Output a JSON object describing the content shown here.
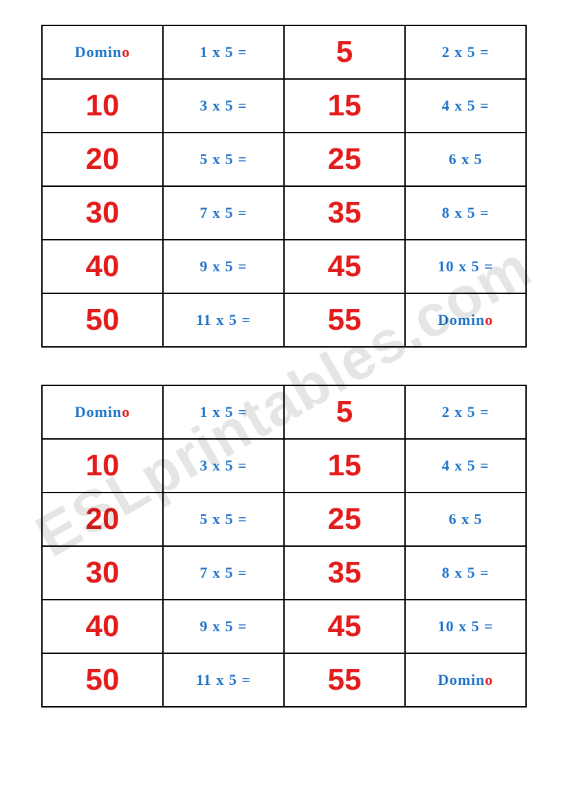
{
  "watermark": "ESLprintables.com",
  "colors": {
    "blue": "#1e73c8",
    "red": "#e31b1b",
    "border": "#000000",
    "background": "#ffffff",
    "watermark": "rgba(0,0,0,0.10)"
  },
  "typography": {
    "equation_fontsize": 22,
    "answer_fontsize": 44,
    "label_fontsize": 22
  },
  "tables": [
    {
      "rows": [
        [
          {
            "type": "label",
            "text": "Domino"
          },
          {
            "type": "eq",
            "text": "1 x 5 ="
          },
          {
            "type": "ans",
            "text": "5"
          },
          {
            "type": "eq",
            "text": "2 x 5 ="
          }
        ],
        [
          {
            "type": "ans",
            "text": "10"
          },
          {
            "type": "eq",
            "text": "3 x 5 ="
          },
          {
            "type": "ans",
            "text": "15"
          },
          {
            "type": "eq",
            "text": "4 x 5 ="
          }
        ],
        [
          {
            "type": "ans",
            "text": "20"
          },
          {
            "type": "eq",
            "text": "5 x 5 ="
          },
          {
            "type": "ans",
            "text": "25"
          },
          {
            "type": "eq",
            "text": "6 x 5"
          }
        ],
        [
          {
            "type": "ans",
            "text": "30"
          },
          {
            "type": "eq",
            "text": "7 x 5 ="
          },
          {
            "type": "ans",
            "text": "35"
          },
          {
            "type": "eq",
            "text": "8 x 5 ="
          }
        ],
        [
          {
            "type": "ans",
            "text": "40"
          },
          {
            "type": "eq",
            "text": "9 x 5 ="
          },
          {
            "type": "ans",
            "text": "45"
          },
          {
            "type": "eq",
            "text": "10 x 5 ="
          }
        ],
        [
          {
            "type": "ans",
            "text": "50"
          },
          {
            "type": "eq",
            "text": "11 x 5 ="
          },
          {
            "type": "ans",
            "text": "55"
          },
          {
            "type": "label",
            "text": "Domino"
          }
        ]
      ]
    },
    {
      "rows": [
        [
          {
            "type": "label",
            "text": "Domino"
          },
          {
            "type": "eq",
            "text": "1 x 5 ="
          },
          {
            "type": "ans",
            "text": "5"
          },
          {
            "type": "eq",
            "text": "2 x 5 ="
          }
        ],
        [
          {
            "type": "ans",
            "text": "10"
          },
          {
            "type": "eq",
            "text": "3 x 5 ="
          },
          {
            "type": "ans",
            "text": "15"
          },
          {
            "type": "eq",
            "text": "4 x 5 ="
          }
        ],
        [
          {
            "type": "ans",
            "text": "20"
          },
          {
            "type": "eq",
            "text": "5 x 5 ="
          },
          {
            "type": "ans",
            "text": "25"
          },
          {
            "type": "eq",
            "text": "6 x 5"
          }
        ],
        [
          {
            "type": "ans",
            "text": "30"
          },
          {
            "type": "eq",
            "text": "7 x 5 ="
          },
          {
            "type": "ans",
            "text": "35"
          },
          {
            "type": "eq",
            "text": "8 x 5 ="
          }
        ],
        [
          {
            "type": "ans",
            "text": "40"
          },
          {
            "type": "eq",
            "text": "9 x 5 ="
          },
          {
            "type": "ans",
            "text": "45"
          },
          {
            "type": "eq",
            "text": "10 x 5 ="
          }
        ],
        [
          {
            "type": "ans",
            "text": "50"
          },
          {
            "type": "eq",
            "text": "11 x 5 ="
          },
          {
            "type": "ans",
            "text": "55"
          },
          {
            "type": "label",
            "text": "Domino"
          }
        ]
      ]
    }
  ]
}
